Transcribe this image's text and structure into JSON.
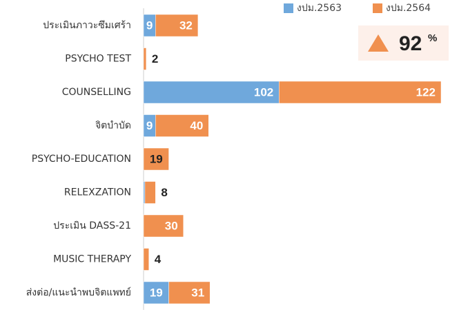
{
  "chart_data": {
    "type": "stacked_barh",
    "categories": [
      "ประเมินภาวะซึมเศร้า",
      "PSYCHO TEST",
      "COUNSELLING",
      "จิตบำบัด",
      "PSYCHO-EDUCATION",
      "RELEXZATION",
      "ประเมิน DASS-21",
      "MUSIC THERAPY",
      "ส่งต่อ/แนะนำพบจิตแพทย์"
    ],
    "series": [
      {
        "name": "งปม.2563",
        "color": "#6fa8dc",
        "values": [
          9,
          null,
          102,
          9,
          null,
          1,
          null,
          null,
          19
        ]
      },
      {
        "name": "งปม.2564",
        "color": "#f0904f",
        "values": [
          32,
          2,
          122,
          40,
          19,
          8,
          30,
          4,
          31
        ]
      }
    ],
    "xlim": [
      0,
      237.5
    ],
    "legend": "top-right",
    "annotation_value": "92",
    "annotation_unit": "%"
  }
}
